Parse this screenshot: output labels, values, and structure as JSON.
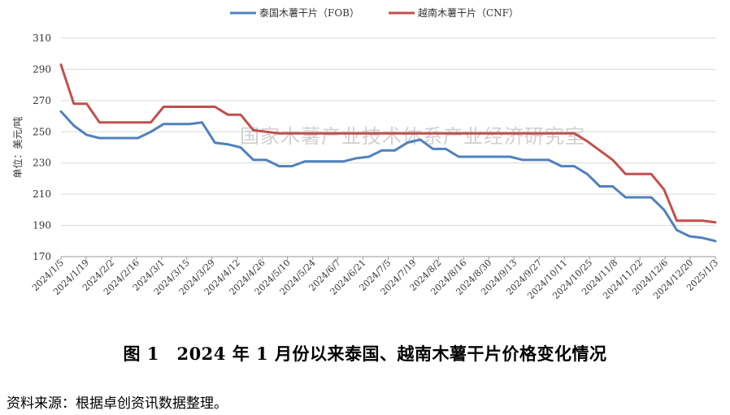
{
  "chart_data": {
    "type": "line",
    "ylabel": "单位：美元/吨",
    "ylim": [
      170,
      310
    ],
    "yticks": [
      170,
      190,
      210,
      230,
      250,
      270,
      290,
      310
    ],
    "grid": "horizontal",
    "legend_position": "top-center",
    "watermark": "国家木薯产业技术体系产业经济研究室",
    "x_ticks": [
      "2024/1/5",
      "2024/1/19",
      "2024/2/2",
      "2024/2/16",
      "2024/3/1",
      "2024/3/15",
      "2024/3/29",
      "2024/4/12",
      "2024/4/26",
      "2024/5/10",
      "2024/5/24",
      "2024/6/7",
      "2024/6/21",
      "2024/7/5",
      "2024/7/19",
      "2024/8/2",
      "2024/8/16",
      "2024/8/30",
      "2024/9/13",
      "2024/9/27",
      "2024/10/11",
      "2024/10/25",
      "2024/11/8",
      "2024/11/22",
      "2024/12/6",
      "2024/12/20",
      "2025/1/3"
    ],
    "series": [
      {
        "name": "泰国木薯干片（FOB）",
        "color": "#4f81bd",
        "values": [
          263,
          254,
          248,
          246,
          246,
          246,
          246,
          250,
          255,
          255,
          255,
          256,
          243,
          242,
          240,
          232,
          232,
          228,
          228,
          231,
          231,
          231,
          231,
          233,
          234,
          238,
          238,
          243,
          245,
          239,
          239,
          234,
          234,
          234,
          234,
          234,
          232,
          232,
          232,
          228,
          228,
          223,
          215,
          215,
          208,
          208,
          208,
          200,
          187,
          183,
          182,
          180
        ]
      },
      {
        "name": "越南木薯干片（CNF）",
        "color": "#c0504d",
        "values": [
          293,
          268,
          268,
          256,
          256,
          256,
          256,
          256,
          266,
          266,
          266,
          266,
          266,
          261,
          261,
          251,
          250,
          249,
          249,
          249,
          249,
          249,
          249,
          249,
          249,
          249,
          249,
          249,
          249,
          249,
          249,
          249,
          249,
          249,
          249,
          249,
          249,
          249,
          249,
          249,
          249,
          244,
          238,
          232,
          223,
          223,
          223,
          213,
          193,
          193,
          193,
          192
        ]
      }
    ]
  },
  "caption": "图 1　2024 年 1 月份以来泰国、越南木薯干片价格变化情况",
  "source": "资料来源：根据卓创资讯数据整理。"
}
